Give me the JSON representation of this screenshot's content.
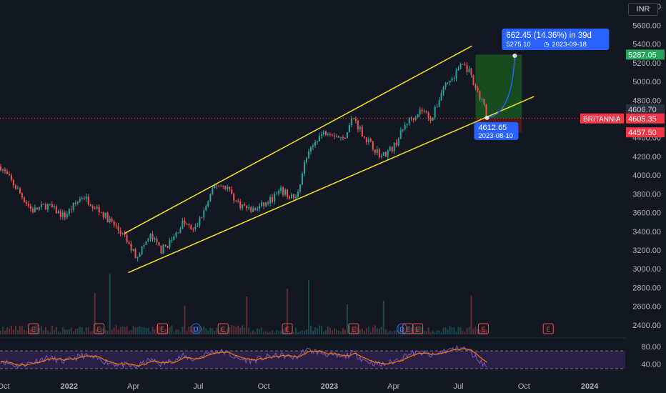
{
  "currency": "INR",
  "colors": {
    "background": "#131722",
    "up": "#26a69a",
    "down": "#ef5350",
    "channel": "#f5e51b",
    "projection": "#2962ff",
    "target_zone": "#1b5e20",
    "stop_zone": "#5d1a1a",
    "rsi": "#f57c00",
    "rsi_band": "#2a1f44",
    "grid_text": "#b2b5be"
  },
  "chart_data": {
    "type": "candlestick",
    "symbol": "BRITANNIA",
    "y_axis": {
      "ticks": [
        2400,
        2600,
        2800,
        3000,
        3200,
        3400,
        3600,
        3800,
        4000,
        4200,
        4400,
        4600,
        4800,
        5000,
        5200,
        5400,
        5600,
        5800
      ],
      "tick_labels": [
        "2400.00",
        "2600.00",
        "2800.00",
        "3000.00",
        "3200.00",
        "3400.00",
        "3600.00",
        "3800.00",
        "4000.00",
        "4200.00",
        "4400.00",
        "4600.00",
        "4800.00",
        "5000.00",
        "5200.00",
        "5400.00",
        "5600.00",
        "5800.00"
      ],
      "range": [
        2300,
        5870
      ]
    },
    "x_axis": {
      "labels": [
        "Oct",
        "2022",
        "Apr",
        "Jul",
        "Oct",
        "2023",
        "Apr",
        "Jul",
        "Oct",
        "2024"
      ],
      "range": [
        "2021-09-26",
        "2024-02-20"
      ]
    },
    "x_label_dates": [
      "2021-10-01",
      "2022-01-01",
      "2022-04-01",
      "2022-07-01",
      "2022-10-01",
      "2023-01-01",
      "2023-04-01",
      "2023-07-01",
      "2023-10-01",
      "2024-01-01"
    ],
    "price_path": [
      [
        "2021-09-27",
        4090
      ],
      [
        "2021-10-20",
        3850
      ],
      [
        "2021-11-10",
        3620
      ],
      [
        "2021-12-01",
        3680
      ],
      [
        "2021-12-25",
        3560
      ],
      [
        "2022-01-20",
        3780
      ],
      [
        "2022-02-10",
        3640
      ],
      [
        "2022-03-01",
        3500
      ],
      [
        "2022-03-20",
        3330
      ],
      [
        "2022-04-05",
        3130
      ],
      [
        "2022-04-25",
        3350
      ],
      [
        "2022-05-10",
        3200
      ],
      [
        "2022-05-25",
        3300
      ],
      [
        "2022-06-10",
        3500
      ],
      [
        "2022-06-25",
        3400
      ],
      [
        "2022-07-10",
        3630
      ],
      [
        "2022-07-25",
        3900
      ],
      [
        "2022-08-10",
        3880
      ],
      [
        "2022-08-25",
        3700
      ],
      [
        "2022-09-15",
        3620
      ],
      [
        "2022-10-05",
        3700
      ],
      [
        "2022-10-25",
        3830
      ],
      [
        "2022-11-15",
        3750
      ],
      [
        "2022-11-28",
        4150
      ],
      [
        "2022-12-15",
        4400
      ],
      [
        "2022-12-30",
        4480
      ],
      [
        "2023-01-20",
        4380
      ],
      [
        "2023-02-03",
        4620
      ],
      [
        "2023-02-20",
        4400
      ],
      [
        "2023-03-15",
        4200
      ],
      [
        "2023-04-01",
        4300
      ],
      [
        "2023-04-20",
        4570
      ],
      [
        "2023-05-10",
        4700
      ],
      [
        "2023-05-25",
        4600
      ],
      [
        "2023-06-10",
        4950
      ],
      [
        "2023-06-25",
        5050
      ],
      [
        "2023-07-05",
        5200
      ],
      [
        "2023-07-15",
        5120
      ],
      [
        "2023-07-25",
        4900
      ],
      [
        "2023-08-05",
        4760
      ],
      [
        "2023-08-10",
        4605.35
      ]
    ],
    "channel_lines": [
      {
        "name": "upper",
        "from": [
          "2022-03-20",
          3380
        ],
        "to": [
          "2023-07-20",
          5380
        ]
      },
      {
        "name": "lower",
        "from": [
          "2022-03-25",
          2960
        ],
        "to": [
          "2023-10-15",
          4840
        ]
      }
    ],
    "position_tool": {
      "entry": 4605.35,
      "target": 5287.05,
      "stop": 4457.5,
      "start": "2023-07-25",
      "end": "2023-09-28"
    },
    "projection": {
      "from": [
        "2023-08-10",
        4612.65
      ],
      "to": [
        "2023-09-18",
        5275.1
      ]
    },
    "annotations": {
      "projection_title": "662.45 (14.36%) in 39d",
      "projection_sub": "5275.10",
      "projection_date": "2023-09-18",
      "start_value": "4612.65",
      "start_date": "2023-08-10"
    },
    "price_labels": {
      "target": "5287.05",
      "high": "4606.70",
      "last": "4605.35",
      "stop": "4457.50",
      "symbol": "BRITANNIA"
    },
    "events": [
      {
        "type": "E",
        "date": "2021-11-12"
      },
      {
        "type": "E",
        "date": "2022-02-12"
      },
      {
        "type": "E",
        "date": "2022-05-12"
      },
      {
        "type": "D",
        "date": "2022-06-28"
      },
      {
        "type": "E",
        "date": "2022-08-05"
      },
      {
        "type": "E",
        "date": "2022-11-03"
      },
      {
        "type": "E",
        "date": "2023-02-04"
      },
      {
        "type": "D",
        "date": "2023-04-13"
      },
      {
        "type": "E",
        "date": "2023-04-21"
      },
      {
        "type": "E",
        "date": "2023-05-05"
      },
      {
        "type": "E",
        "date": "2023-08-05"
      },
      {
        "type": "E",
        "date": "2023-11-04"
      }
    ],
    "rsi": {
      "ticks": [
        40,
        80
      ],
      "tick_labels": [
        "40.00",
        "80.00"
      ],
      "band": [
        30,
        70
      ],
      "range": [
        20,
        88
      ],
      "path": [
        [
          "2021-09-27",
          48
        ],
        [
          "2021-10-20",
          36
        ],
        [
          "2021-11-10",
          44
        ],
        [
          "2021-12-01",
          55
        ],
        [
          "2021-12-25",
          46
        ],
        [
          "2022-01-20",
          60
        ],
        [
          "2022-02-10",
          52
        ],
        [
          "2022-03-01",
          42
        ],
        [
          "2022-03-20",
          38
        ],
        [
          "2022-04-05",
          34
        ],
        [
          "2022-04-25",
          50
        ],
        [
          "2022-05-10",
          40
        ],
        [
          "2022-05-25",
          48
        ],
        [
          "2022-06-10",
          58
        ],
        [
          "2022-06-25",
          50
        ],
        [
          "2022-07-10",
          62
        ],
        [
          "2022-07-25",
          70
        ],
        [
          "2022-08-10",
          66
        ],
        [
          "2022-08-25",
          52
        ],
        [
          "2022-09-15",
          48
        ],
        [
          "2022-10-05",
          56
        ],
        [
          "2022-10-25",
          60
        ],
        [
          "2022-11-15",
          54
        ],
        [
          "2022-11-28",
          72
        ],
        [
          "2022-12-15",
          68
        ],
        [
          "2022-12-30",
          62
        ],
        [
          "2023-01-20",
          55
        ],
        [
          "2023-02-03",
          66
        ],
        [
          "2023-02-20",
          48
        ],
        [
          "2023-03-15",
          38
        ],
        [
          "2023-04-01",
          46
        ],
        [
          "2023-04-20",
          62
        ],
        [
          "2023-05-10",
          66
        ],
        [
          "2023-05-25",
          58
        ],
        [
          "2023-06-10",
          70
        ],
        [
          "2023-06-25",
          74
        ],
        [
          "2023-07-05",
          78
        ],
        [
          "2023-07-15",
          70
        ],
        [
          "2023-07-25",
          56
        ],
        [
          "2023-08-05",
          40
        ],
        [
          "2023-08-10",
          36
        ]
      ]
    }
  }
}
